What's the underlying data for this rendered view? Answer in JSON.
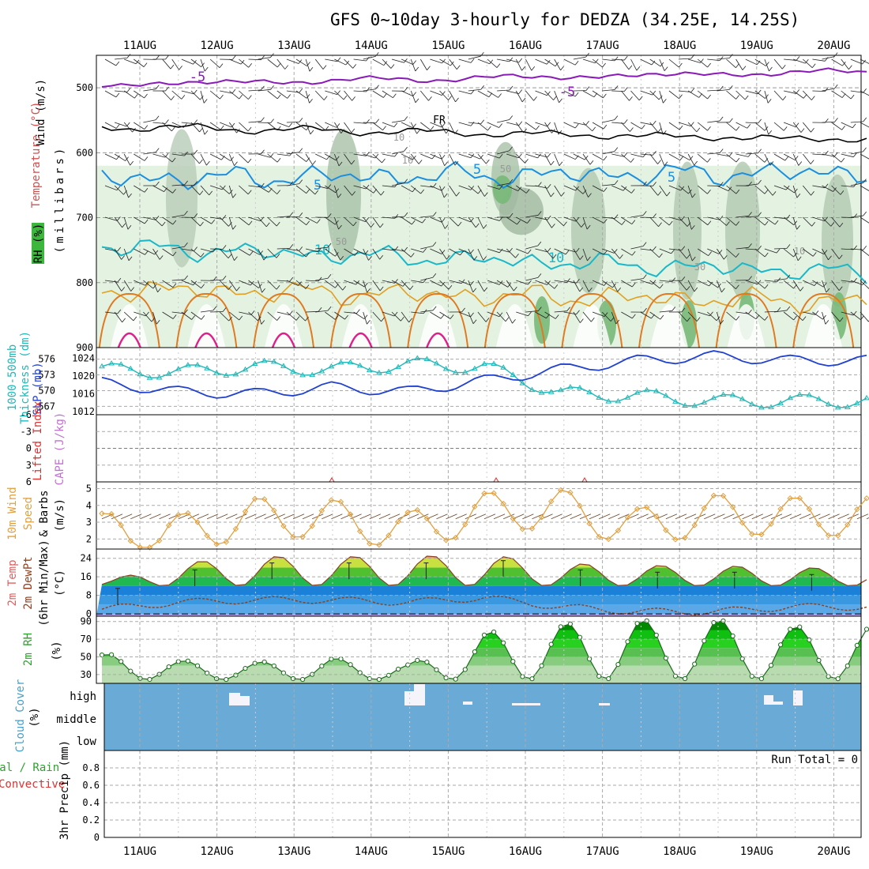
{
  "title": "GFS 0~10day 3-hourly for DEDZA (34.25E, 14.25S)",
  "dates": [
    "11AUG",
    "12AUG",
    "13AUG",
    "14AUG",
    "15AUG",
    "16AUG",
    "17AUG",
    "18AUG",
    "19AUG",
    "20AUG"
  ],
  "panels": {
    "upper": {
      "ylabel_wind": "Wind (m/s)",
      "ylabel_temp": "Temperature (°C)",
      "ylabel_rh": "RH (%)",
      "ylabel_unit": "(millibars)",
      "yticks": [
        "500",
        "600",
        "700",
        "800",
        "900"
      ]
    },
    "thick": {
      "label1": "1000-500mb",
      "label2": "Thickness (dm)",
      "label3": "SLP (mb)",
      "left_ticks": [
        "576",
        "573",
        "570",
        "567"
      ],
      "right_ticks": [
        "1024",
        "1020",
        "1016",
        "1012"
      ]
    },
    "cape": {
      "label_li": "Lifted Index",
      "label_cape": "CAPE (J/kg)",
      "ticks": [
        "-6",
        "-3",
        "0",
        "3",
        "6"
      ]
    },
    "wind10": {
      "label1": "10m Wind",
      "label2": "Speed",
      "label3": "& Barbs",
      "label4": "(m/s)",
      "ticks": [
        "5",
        "4",
        "3",
        "2"
      ]
    },
    "temp2m": {
      "label1": "2m Temp",
      "label2": "2m DewPt",
      "label3": "(6hr Min/Max)",
      "label4": "(°C)",
      "ticks": [
        "24",
        "16",
        "8",
        "0"
      ]
    },
    "rh2m": {
      "label1": "2m RH",
      "label2": "(%)",
      "ticks": [
        "90",
        "70",
        "50",
        "30"
      ]
    },
    "cloud": {
      "label1": "Cloud Cover",
      "label2": "(%)",
      "levels": [
        "high",
        "middle",
        "low"
      ]
    },
    "precip": {
      "label1": "Total / Rain",
      "label2": "Convective",
      "label3": "3hr Precip (mm)",
      "ticks": [
        "0.8",
        "0.6",
        "0.4",
        "0.2",
        "0"
      ],
      "run_total": "Run Total = 0"
    }
  },
  "contour_labels": [
    "-5",
    "-5",
    "FR",
    "10",
    "10",
    "5",
    "5",
    "5",
    "10",
    "10",
    "50",
    "50",
    "30",
    "10"
  ],
  "colors": {
    "temp_neg": "#8a1ab8",
    "temp_zero": "#000000",
    "temp_5": "#1a8fe0",
    "temp_10": "#1ab8c8",
    "temp_15": "#e0a020",
    "temp_20": "#e07a20",
    "temp_25": "#e0208a",
    "rh_light": "#e4f2e2",
    "rh_mid": "#b8d4b8",
    "rh_dark": "#78b878",
    "thickness": "#20b8b8",
    "slp": "#2040d0",
    "wind_speed": "#e0a040",
    "cloud": "#6aaad6"
  },
  "chart_data": [
    {
      "type": "heatmap",
      "panel": "Upper air wind, temperature and RH cross-section",
      "y_axis": "pressure (mb)",
      "ylim": [
        450,
        900
      ],
      "temperature_contours_C": [
        -5,
        0,
        5,
        10,
        15,
        20,
        25
      ],
      "temp_levels_approx_mb": {
        "-5": 495,
        "0": 560,
        "5": 640,
        "10": 745,
        "15": 810,
        "20": 850,
        "25": 890
      },
      "rh_contours_pct": [
        10,
        30,
        50,
        70,
        90
      ]
    },
    {
      "type": "line",
      "panel": "1000-500mb Thickness and SLP",
      "x": [
        "11AUG",
        "12AUG",
        "13AUG",
        "14AUG",
        "15AUG",
        "16AUG",
        "17AUG",
        "18AUG",
        "19AUG",
        "20AUG"
      ],
      "series": [
        {
          "name": "1000-500mb Thickness (dm)",
          "ylim": [
            566,
            577
          ],
          "values": [
            574.0,
            573.5,
            574.5,
            574.0,
            575.0,
            574.5,
            569.5,
            569.0,
            568.0,
            568.0
          ]
        },
        {
          "name": "SLP (mb)",
          "ylim": [
            1012,
            1025
          ],
          "values": [
            1018.5,
            1016.5,
            1016.0,
            1017.5,
            1016.5,
            1019.0,
            1021.5,
            1023.5,
            1024.5,
            1023.5
          ]
        }
      ]
    },
    {
      "type": "line",
      "panel": "Lifted Index / CAPE",
      "ylim": [
        -6,
        6
      ],
      "x": [
        "11AUG",
        "12AUG",
        "13AUG",
        "14AUG",
        "15AUG",
        "16AUG",
        "17AUG",
        "18AUG",
        "19AUG",
        "20AUG"
      ],
      "series": [
        {
          "name": "Lifted Index",
          "values": [
            6,
            6,
            6,
            6,
            6,
            6,
            6,
            6,
            6,
            6
          ]
        }
      ]
    },
    {
      "type": "line",
      "panel": "10m Wind Speed & Barbs (m/s)",
      "ylim": [
        1.5,
        5.3
      ],
      "x": [
        "11AUG",
        "12AUG",
        "13AUG",
        "14AUG",
        "15AUG",
        "16AUG",
        "17AUG",
        "18AUG",
        "19AUG",
        "20AUG"
      ],
      "series": [
        {
          "name": "10m Wind Speed",
          "values": [
            1.5,
            1.3,
            3.7,
            3.5,
            1.7,
            4.5,
            5.0,
            2.2,
            4.2,
            3.8
          ]
        }
      ]
    },
    {
      "type": "area",
      "panel": "2m Temp / 2m DewPt (°C)",
      "ylim": [
        -1,
        28
      ],
      "x": [
        "11AUG",
        "12AUG",
        "13AUG",
        "14AUG",
        "15AUG",
        "16AUG",
        "17AUG",
        "18AUG",
        "19AUG",
        "20AUG"
      ],
      "series": [
        {
          "name": "2m Temp",
          "values": [
            14,
            22,
            25,
            25,
            25,
            26,
            22,
            21,
            21,
            20
          ]
        },
        {
          "name": "2m DewPt",
          "values": [
            2,
            5,
            6,
            6,
            5,
            7,
            3,
            1,
            1,
            3
          ]
        }
      ]
    },
    {
      "type": "area",
      "panel": "2m RH (%)",
      "ylim": [
        20,
        95
      ],
      "x": [
        "11AUG",
        "12AUG",
        "13AUG",
        "14AUG",
        "15AUG",
        "16AUG",
        "17AUG",
        "18AUG",
        "19AUG",
        "20AUG"
      ],
      "series": [
        {
          "name": "2m RH",
          "values": [
            54,
            46,
            44,
            49,
            42,
            78,
            88,
            92,
            93,
            85
          ]
        }
      ]
    },
    {
      "type": "heatmap",
      "panel": "Cloud Cover (%)",
      "levels": [
        "high",
        "middle",
        "low"
      ]
    },
    {
      "type": "bar",
      "panel": "3hr Precip (mm)",
      "ylim": [
        0,
        1.0
      ],
      "x": [
        "11AUG",
        "12AUG",
        "13AUG",
        "14AUG",
        "15AUG",
        "16AUG",
        "17AUG",
        "18AUG",
        "19AUG",
        "20AUG"
      ],
      "values": [
        0,
        0,
        0,
        0,
        0,
        0,
        0,
        0,
        0,
        0
      ]
    }
  ]
}
